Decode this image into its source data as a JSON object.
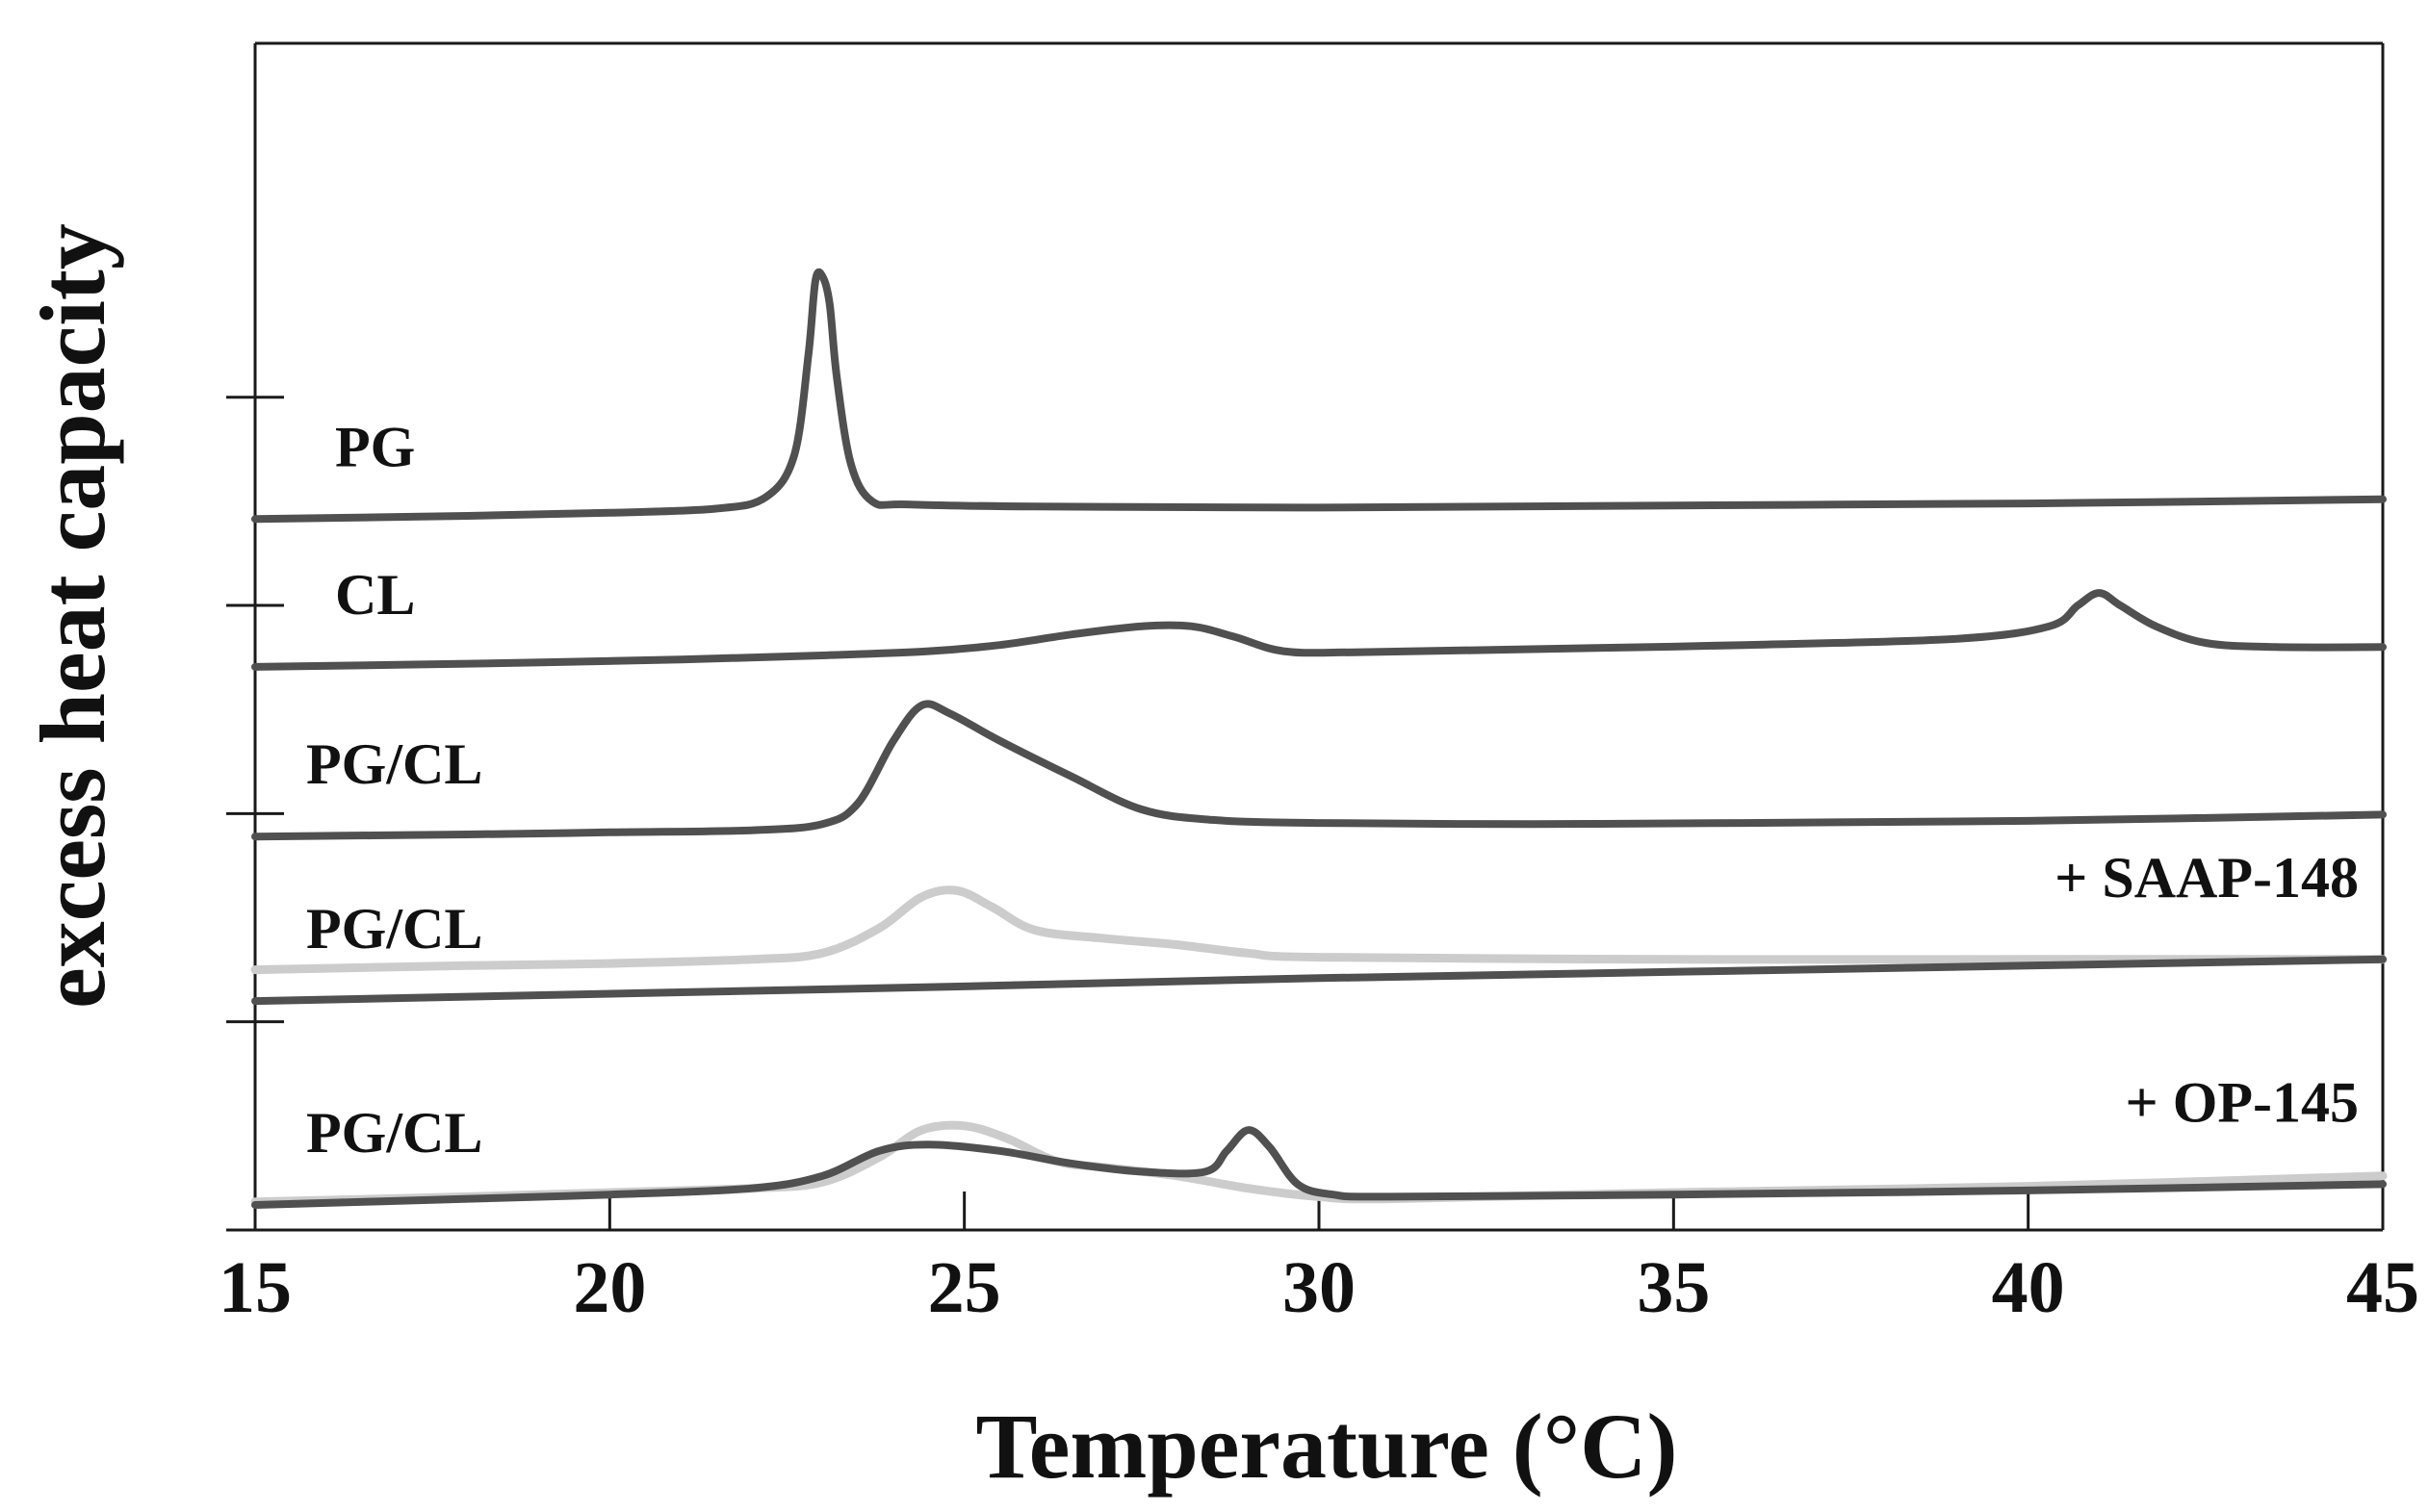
{
  "chart_data": {
    "type": "line",
    "title": "",
    "xlabel": "Temperature (°C)",
    "ylabel": "excess heat capacity",
    "xlim": [
      15,
      45
    ],
    "ylim": [
      0,
      5.7
    ],
    "x_ticks": [
      "15",
      "20",
      "25",
      "30",
      "35",
      "40",
      "45"
    ],
    "y_ticks": [
      0,
      1,
      2,
      3,
      4
    ],
    "grid": false,
    "colors": {
      "main": "#505050",
      "reference": "#cccccc",
      "axis": "#1a1a1a"
    },
    "series": [
      {
        "name": "PG",
        "label": "PG",
        "note": "",
        "style": "main",
        "points": [
          [
            15,
            3.415
          ],
          [
            18,
            3.43
          ],
          [
            20,
            3.445
          ],
          [
            21.5,
            3.465
          ],
          [
            22.2,
            3.52
          ],
          [
            22.6,
            3.72
          ],
          [
            22.8,
            4.2
          ],
          [
            22.9,
            4.56
          ],
          [
            23.0,
            4.58
          ],
          [
            23.1,
            4.45
          ],
          [
            23.2,
            4.1
          ],
          [
            23.4,
            3.68
          ],
          [
            23.7,
            3.5
          ],
          [
            24.2,
            3.485
          ],
          [
            26,
            3.475
          ],
          [
            30,
            3.47
          ],
          [
            35,
            3.48
          ],
          [
            40,
            3.49
          ],
          [
            45,
            3.51
          ]
        ]
      },
      {
        "name": "CL",
        "label": "CL",
        "note": "",
        "style": "main",
        "points": [
          [
            15,
            2.705
          ],
          [
            18,
            2.72
          ],
          [
            21,
            2.74
          ],
          [
            23,
            2.76
          ],
          [
            24.5,
            2.78
          ],
          [
            25.5,
            2.81
          ],
          [
            26.5,
            2.86
          ],
          [
            27.5,
            2.9
          ],
          [
            28.2,
            2.9
          ],
          [
            28.8,
            2.85
          ],
          [
            29.5,
            2.78
          ],
          [
            30.5,
            2.775
          ],
          [
            33,
            2.79
          ],
          [
            36,
            2.81
          ],
          [
            39,
            2.84
          ],
          [
            40.3,
            2.9
          ],
          [
            40.7,
            3.0
          ],
          [
            41.0,
            3.06
          ],
          [
            41.3,
            3.0
          ],
          [
            41.8,
            2.9
          ],
          [
            42.5,
            2.82
          ],
          [
            43.5,
            2.8
          ],
          [
            45,
            2.8
          ]
        ]
      },
      {
        "name": "PG/CL",
        "label": "PG/CL",
        "note": "",
        "style": "main",
        "points": [
          [
            15,
            1.89
          ],
          [
            18,
            1.9
          ],
          [
            20,
            1.91
          ],
          [
            22,
            1.92
          ],
          [
            23,
            1.95
          ],
          [
            23.5,
            2.05
          ],
          [
            24,
            2.35
          ],
          [
            24.4,
            2.52
          ],
          [
            24.8,
            2.48
          ],
          [
            25.5,
            2.35
          ],
          [
            26.5,
            2.18
          ],
          [
            27.5,
            2.02
          ],
          [
            28.5,
            1.97
          ],
          [
            30,
            1.955
          ],
          [
            33,
            1.95
          ],
          [
            36,
            1.955
          ],
          [
            40,
            1.965
          ],
          [
            45,
            1.995
          ]
        ]
      },
      {
        "name": "PG/CL + SAAP-148 (reference)",
        "label": "",
        "note": "",
        "style": "reference",
        "points": [
          [
            15,
            1.25
          ],
          [
            18,
            1.27
          ],
          [
            20,
            1.28
          ],
          [
            22,
            1.3
          ],
          [
            23,
            1.33
          ],
          [
            23.8,
            1.45
          ],
          [
            24.4,
            1.6
          ],
          [
            24.9,
            1.63
          ],
          [
            25.4,
            1.55
          ],
          [
            26,
            1.44
          ],
          [
            27,
            1.4
          ],
          [
            28,
            1.37
          ],
          [
            29,
            1.33
          ],
          [
            30,
            1.31
          ],
          [
            35,
            1.3
          ],
          [
            40,
            1.3
          ],
          [
            45,
            1.3
          ]
        ]
      },
      {
        "name": "PG/CL + SAAP-148",
        "label": "PG/CL",
        "note": "+ SAAP-148",
        "style": "main",
        "points": [
          [
            15,
            1.1
          ],
          [
            25,
            1.17
          ],
          [
            30,
            1.21
          ],
          [
            35,
            1.24
          ],
          [
            40,
            1.27
          ],
          [
            45,
            1.3
          ]
        ]
      },
      {
        "name": "PG/CL + OP-145 (reference)",
        "label": "",
        "note": "",
        "style": "reference",
        "points": [
          [
            15,
            0.135
          ],
          [
            18,
            0.16
          ],
          [
            20,
            0.18
          ],
          [
            22,
            0.2
          ],
          [
            23,
            0.23
          ],
          [
            23.8,
            0.35
          ],
          [
            24.4,
            0.48
          ],
          [
            25,
            0.5
          ],
          [
            25.6,
            0.44
          ],
          [
            26.3,
            0.33
          ],
          [
            27,
            0.3
          ],
          [
            28,
            0.26
          ],
          [
            29,
            0.2
          ],
          [
            30,
            0.16
          ],
          [
            31,
            0.15
          ],
          [
            35,
            0.18
          ],
          [
            40,
            0.21
          ],
          [
            45,
            0.26
          ]
        ]
      },
      {
        "name": "PG/CL + OP-145",
        "label": "PG/CL",
        "note": "+ OP-145",
        "style": "main",
        "points": [
          [
            15,
            0.12
          ],
          [
            18,
            0.15
          ],
          [
            20,
            0.17
          ],
          [
            22,
            0.2
          ],
          [
            23,
            0.26
          ],
          [
            23.8,
            0.38
          ],
          [
            24.5,
            0.41
          ],
          [
            25.5,
            0.38
          ],
          [
            26.5,
            0.32
          ],
          [
            27.5,
            0.28
          ],
          [
            28.4,
            0.28
          ],
          [
            28.7,
            0.38
          ],
          [
            29.0,
            0.48
          ],
          [
            29.3,
            0.4
          ],
          [
            29.7,
            0.22
          ],
          [
            30.2,
            0.17
          ],
          [
            31,
            0.16
          ],
          [
            35,
            0.17
          ],
          [
            40,
            0.19
          ],
          [
            45,
            0.22
          ]
        ]
      }
    ]
  }
}
